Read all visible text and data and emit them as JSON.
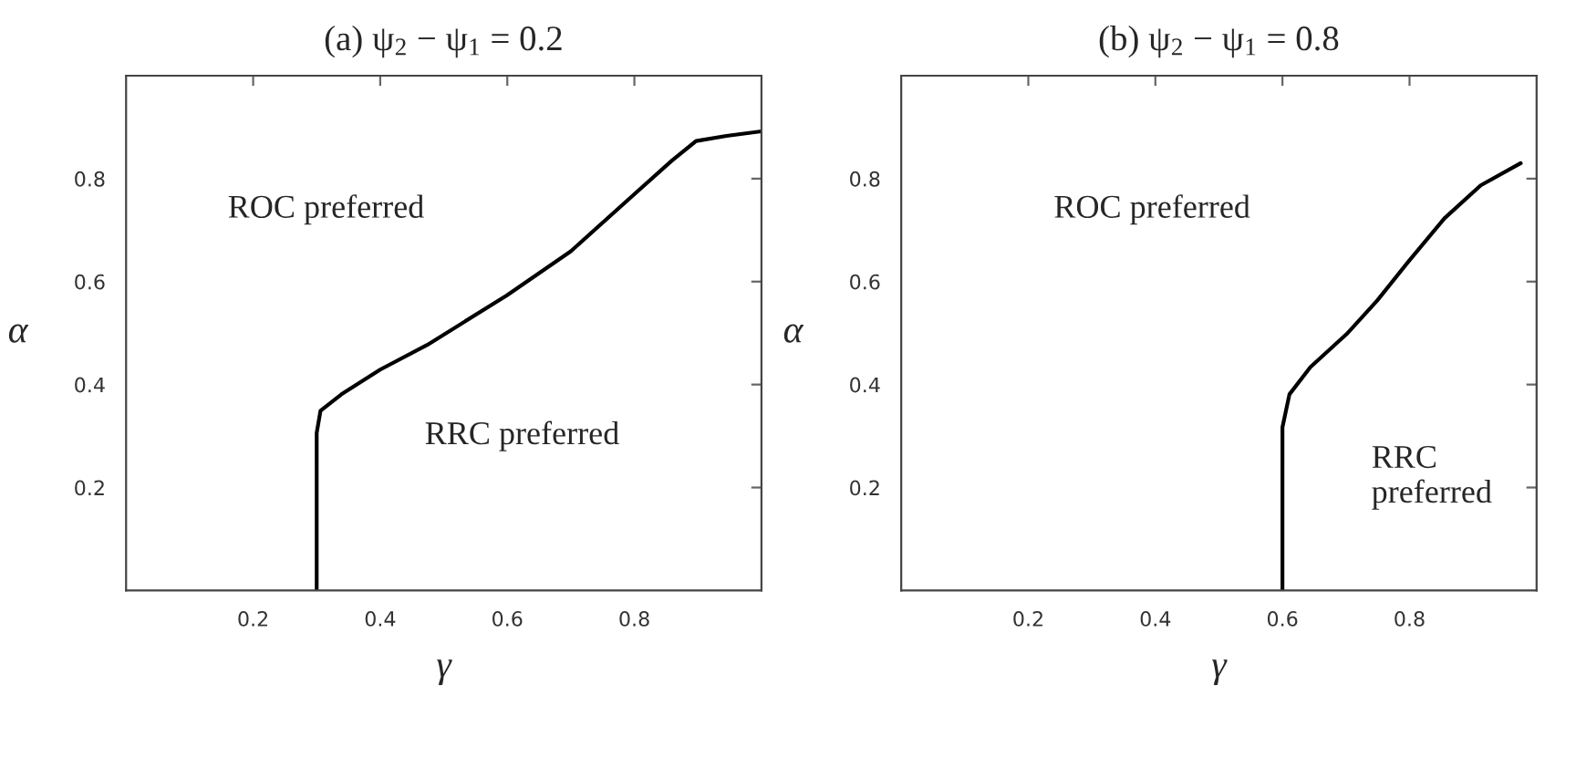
{
  "chart_data": [
    {
      "type": "line",
      "title": "(a) ψ$_{2}$ − ψ$_{1}$ = 0.2",
      "xlabel": "γ",
      "ylabel": "α",
      "xlim": [
        0,
        1
      ],
      "ylim": [
        0,
        1
      ],
      "xticks": [
        0.2,
        0.4,
        0.6,
        0.8
      ],
      "yticks": [
        0.2,
        0.4,
        0.6,
        0.8
      ],
      "grid": false,
      "annotations": [
        "ROC preferred",
        "RRC preferred"
      ],
      "series": [
        {
          "color": "#000000",
          "x": [
            0.3,
            0.3,
            0.306,
            0.339,
            0.4,
            0.474,
            0.599,
            0.7,
            0.801,
            0.859,
            0.897,
            0.945,
            1.0
          ],
          "values": [
            0,
            0.306,
            0.349,
            0.381,
            0.429,
            0.477,
            0.573,
            0.659,
            0.771,
            0.835,
            0.873,
            0.883,
            0.892
          ]
        }
      ]
    },
    {
      "type": "line",
      "title": "(b) ψ$_{2}$ − ψ$_{1}$ = 0.8",
      "xlabel": "γ",
      "ylabel": "α",
      "xlim": [
        0,
        1
      ],
      "ylim": [
        0,
        1
      ],
      "xticks": [
        0.2,
        0.4,
        0.6,
        0.8
      ],
      "yticks": [
        0.2,
        0.4,
        0.6,
        0.8
      ],
      "grid": false,
      "annotations": [
        "ROC preferred",
        "RRC\npreferred"
      ],
      "series": [
        {
          "color": "#000000",
          "x": [
            0.6,
            0.6,
            0.611,
            0.644,
            0.701,
            0.749,
            0.797,
            0.855,
            0.912,
            0.975
          ],
          "values": [
            0,
            0.317,
            0.381,
            0.434,
            0.498,
            0.563,
            0.637,
            0.723,
            0.787,
            0.83
          ]
        }
      ]
    }
  ]
}
